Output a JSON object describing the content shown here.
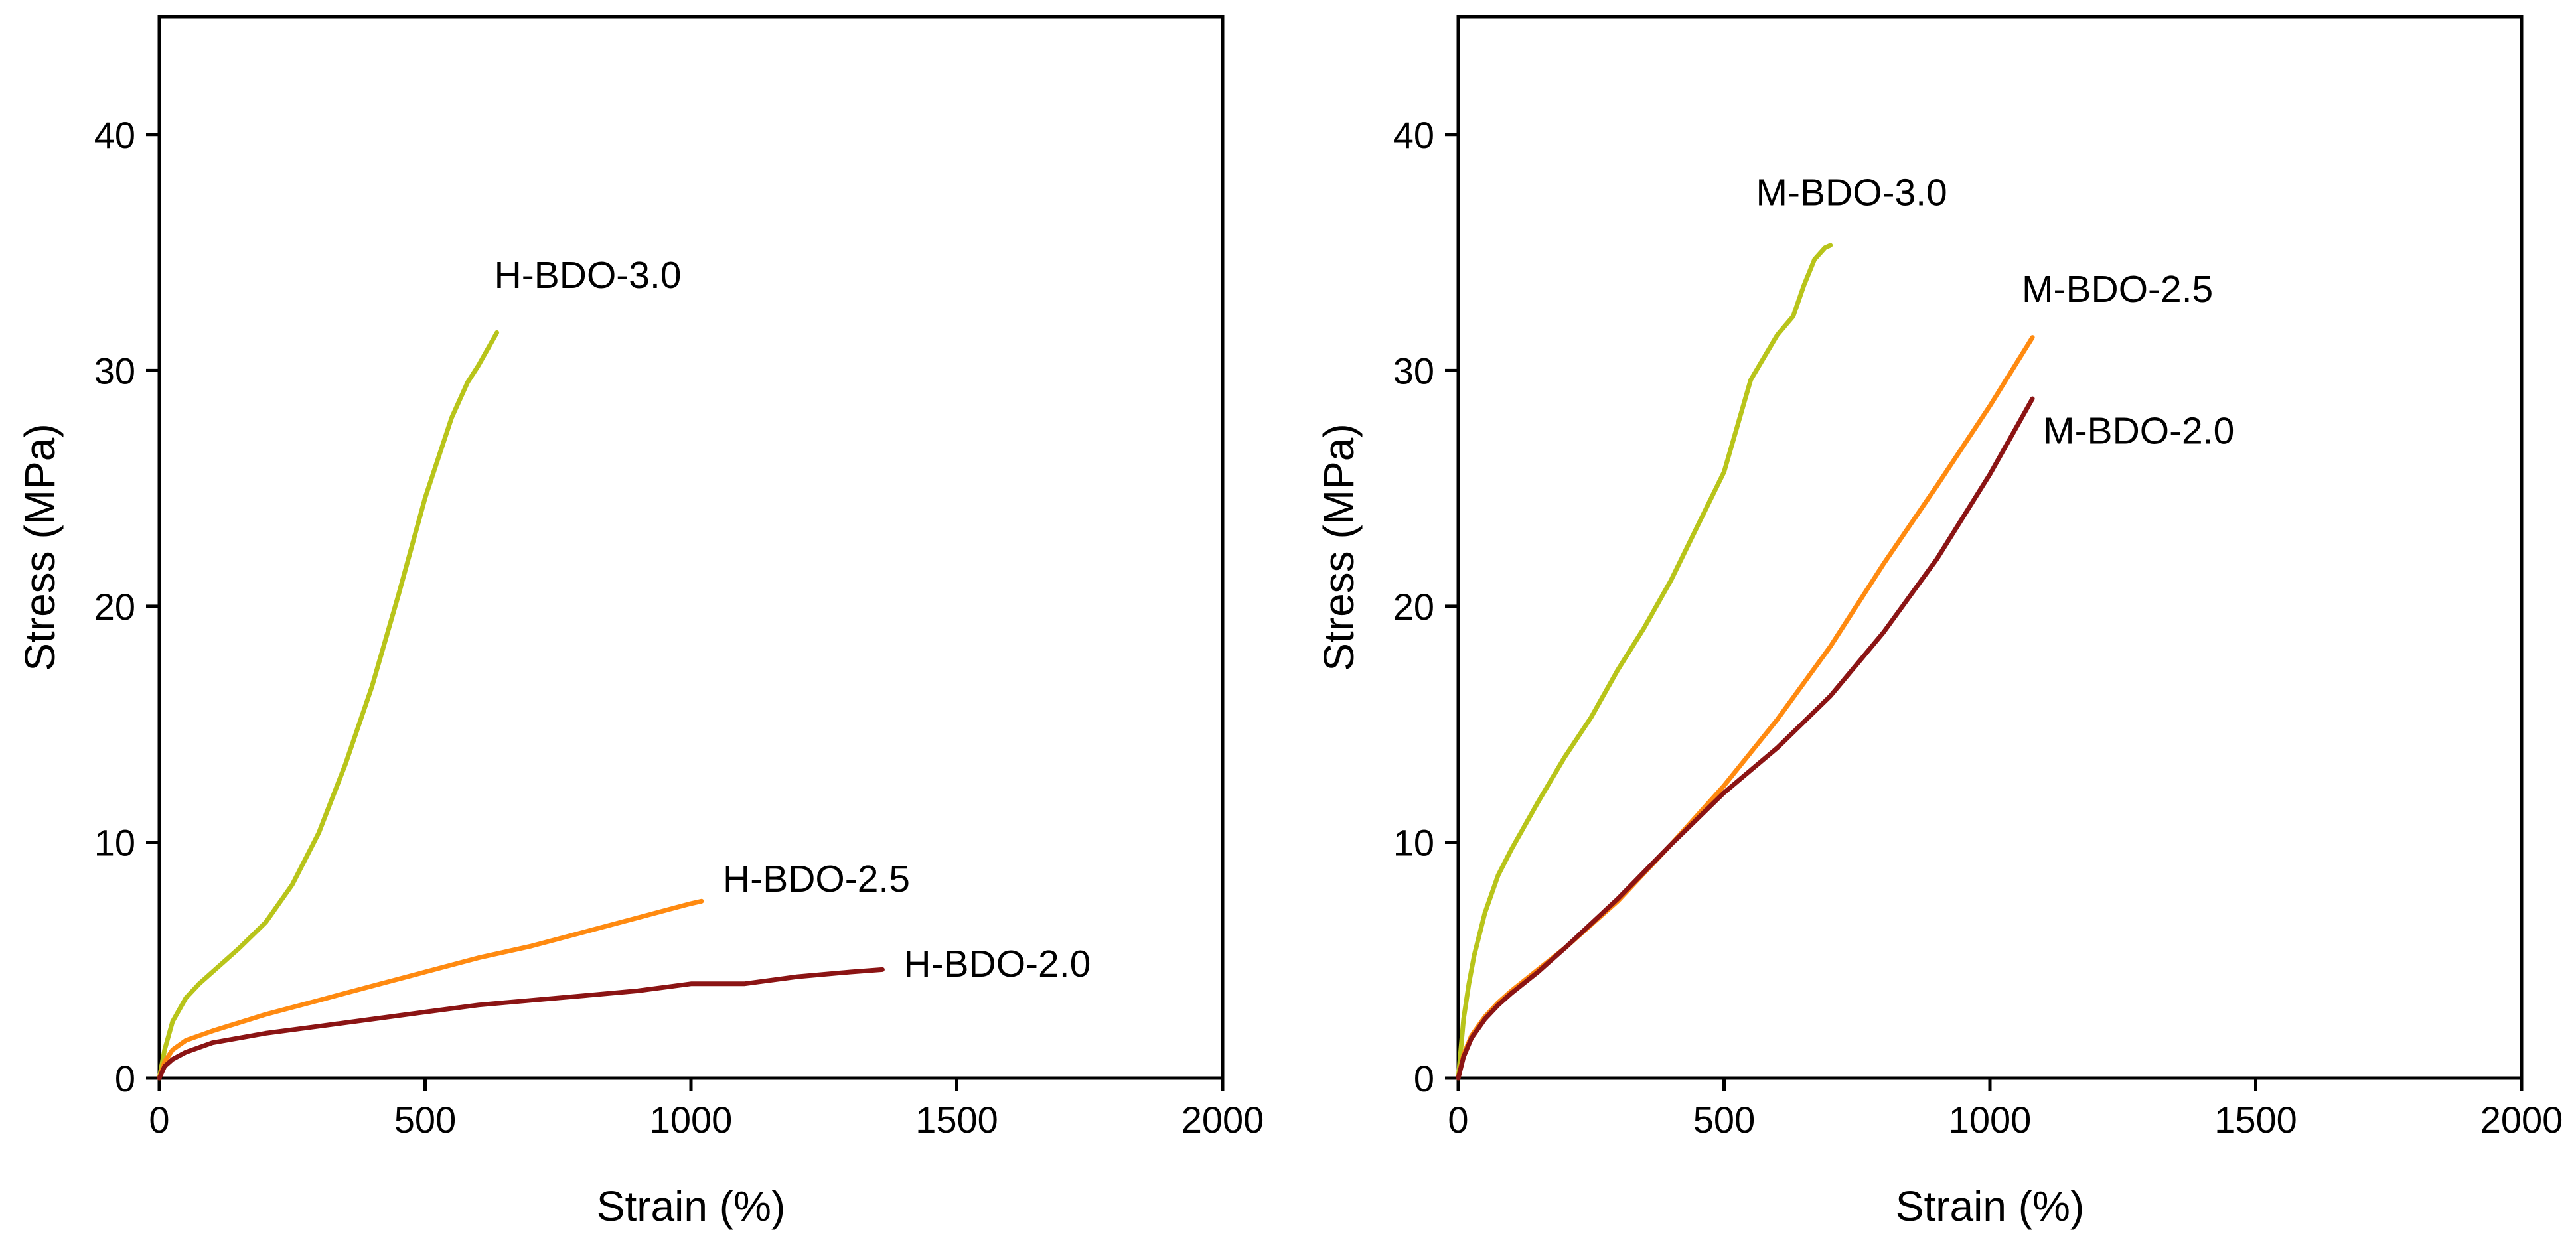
{
  "chart_data": [
    {
      "type": "line",
      "title": "",
      "xlabel": "Strain (%)",
      "ylabel": "Stress (MPa)",
      "xlim": [
        0,
        2000
      ],
      "ylim": [
        0,
        45
      ],
      "xticks": [
        0,
        500,
        1000,
        1500,
        2000
      ],
      "yticks": [
        0,
        10,
        20,
        30,
        40
      ],
      "grid": false,
      "series": [
        {
          "name": "H-BDO-3.0",
          "color": "#b8c41a",
          "x": [
            0,
            10,
            25,
            50,
            75,
            100,
            150,
            200,
            250,
            300,
            350,
            400,
            450,
            500,
            550,
            580,
            600,
            620,
            635
          ],
          "y": [
            0,
            1.2,
            2.4,
            3.4,
            4.0,
            4.5,
            5.5,
            6.6,
            8.2,
            10.4,
            13.3,
            16.6,
            20.5,
            24.6,
            28.0,
            29.5,
            30.2,
            31.0,
            31.6
          ]
        },
        {
          "name": "H-BDO-2.5",
          "color": "#ff8a10",
          "x": [
            0,
            10,
            25,
            50,
            75,
            100,
            200,
            300,
            400,
            500,
            600,
            700,
            800,
            900,
            1000,
            1020
          ],
          "y": [
            0,
            0.7,
            1.2,
            1.6,
            1.8,
            2.0,
            2.7,
            3.3,
            3.9,
            4.5,
            5.1,
            5.6,
            6.2,
            6.8,
            7.4,
            7.5
          ]
        },
        {
          "name": "H-BDO-2.0",
          "color": "#8b1414",
          "x": [
            0,
            10,
            25,
            50,
            75,
            100,
            200,
            300,
            400,
            500,
            600,
            700,
            800,
            900,
            1000,
            1100,
            1200,
            1300,
            1360
          ],
          "y": [
            0,
            0.5,
            0.8,
            1.1,
            1.3,
            1.5,
            1.9,
            2.2,
            2.5,
            2.8,
            3.1,
            3.3,
            3.5,
            3.7,
            4.0,
            4.0,
            4.3,
            4.5,
            4.6
          ]
        }
      ],
      "annotations": [
        {
          "text": "H-BDO-3.0",
          "x": 630,
          "y": 33.5
        },
        {
          "text": "H-BDO-2.5",
          "x": 1060,
          "y": 7.9
        },
        {
          "text": "H-BDO-2.0",
          "x": 1400,
          "y": 4.3
        }
      ]
    },
    {
      "type": "line",
      "title": "",
      "xlabel": "Strain (%)",
      "ylabel": "Stress (MPa)",
      "xlim": [
        0,
        2000
      ],
      "ylim": [
        0,
        45
      ],
      "xticks": [
        0,
        500,
        1000,
        1500,
        2000
      ],
      "yticks": [
        0,
        10,
        20,
        30,
        40
      ],
      "grid": false,
      "series": [
        {
          "name": "M-BDO-3.0",
          "color": "#b8c41a",
          "x": [
            0,
            10,
            20,
            30,
            50,
            75,
            100,
            150,
            200,
            250,
            300,
            350,
            400,
            450,
            500,
            550,
            600,
            630,
            650,
            670,
            690,
            700
          ],
          "y": [
            0,
            2.5,
            4.0,
            5.2,
            7.0,
            8.6,
            9.7,
            11.7,
            13.6,
            15.3,
            17.3,
            19.1,
            21.1,
            23.4,
            25.7,
            29.6,
            31.5,
            32.3,
            33.6,
            34.7,
            35.2,
            35.3
          ]
        },
        {
          "name": "M-BDO-2.5",
          "color": "#ff8a10",
          "x": [
            0,
            10,
            25,
            50,
            75,
            100,
            150,
            200,
            300,
            400,
            500,
            600,
            700,
            800,
            900,
            1000,
            1080
          ],
          "y": [
            0,
            1.0,
            1.8,
            2.6,
            3.2,
            3.7,
            4.6,
            5.5,
            7.5,
            9.9,
            12.4,
            15.2,
            18.3,
            21.8,
            25.1,
            28.5,
            31.4
          ]
        },
        {
          "name": "M-BDO-2.0",
          "color": "#8b1414",
          "x": [
            0,
            10,
            25,
            50,
            75,
            100,
            150,
            200,
            300,
            400,
            500,
            600,
            700,
            800,
            900,
            1000,
            1080
          ],
          "y": [
            0,
            0.9,
            1.7,
            2.5,
            3.1,
            3.6,
            4.5,
            5.5,
            7.6,
            9.9,
            12.1,
            14.0,
            16.2,
            18.9,
            22.0,
            25.6,
            28.8
          ]
        }
      ],
      "annotations": [
        {
          "text": "M-BDO-3.0",
          "x": 560,
          "y": 37.0
        },
        {
          "text": "M-BDO-2.5",
          "x": 1060,
          "y": 32.9
        },
        {
          "text": "M-BDO-2.0",
          "x": 1100,
          "y": 26.9
        }
      ]
    }
  ]
}
